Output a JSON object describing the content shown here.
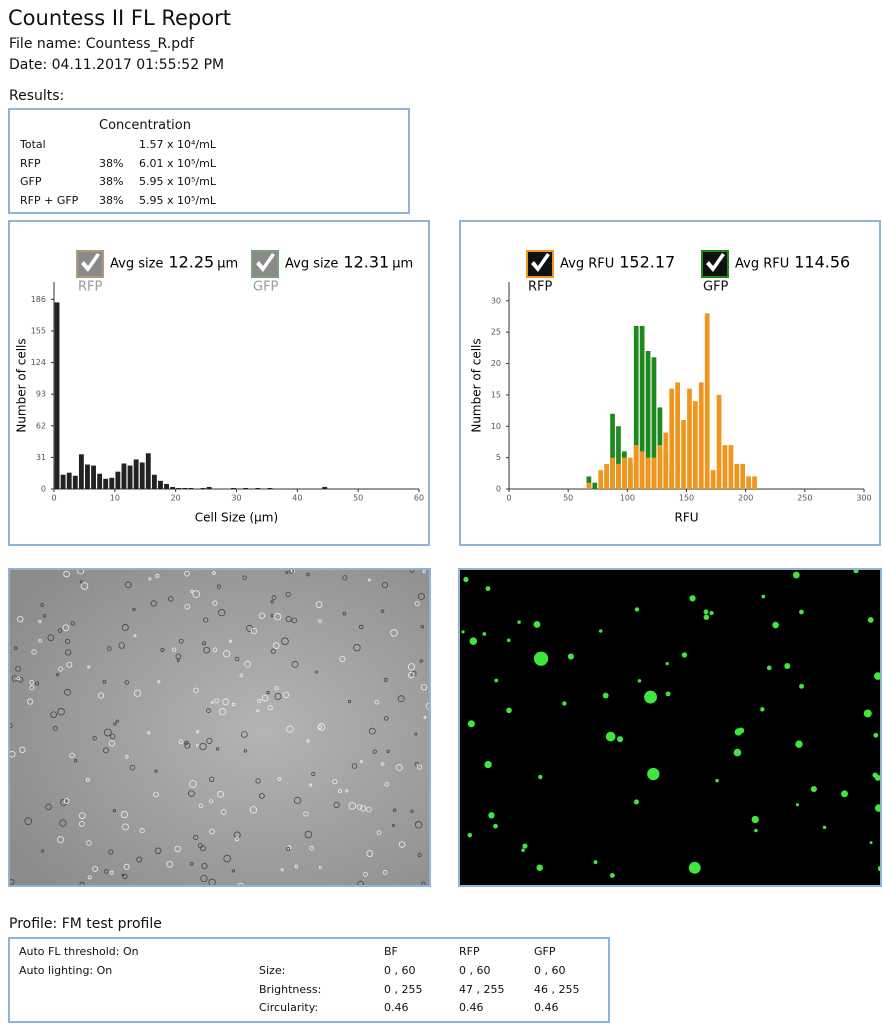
{
  "header": {
    "title": "Countess II FL Report",
    "file_name": "File name: Countess_R.pdf",
    "date": "Date: 04.11.2017 01:55:52 PM"
  },
  "results": {
    "label": "Results:",
    "column_header": "Concentration",
    "rows": [
      [
        "Total",
        "",
        "1.57 x 10⁴/mL"
      ],
      [
        "RFP",
        "38%",
        "6.01 x 10⁵/mL"
      ],
      [
        "GFP",
        "38%",
        "5.95 x 10⁵/mL"
      ],
      [
        "RFP + GFP",
        "38%",
        "5.95 x 10⁵/mL"
      ]
    ]
  },
  "chart_data": [
    {
      "type": "bar",
      "x_label": "Cell Size (µm)",
      "y_label": "Number of cells",
      "color": "#222222",
      "legend": [
        {
          "name": "RFP",
          "stat_label": "Avg size",
          "stat_value": 12.25,
          "stat_unit": "µm",
          "color": "#b0987a",
          "label_color": "#999999"
        },
        {
          "name": "GFP",
          "stat_label": "Avg size",
          "stat_value": 12.31,
          "stat_unit": "µm",
          "color": "#7ba07b",
          "label_color": "#999999"
        }
      ],
      "x": [
        0,
        1,
        2,
        3,
        4,
        5,
        6,
        7,
        8,
        9,
        10,
        11,
        12,
        13,
        14,
        15,
        16,
        17,
        18,
        19,
        20,
        21,
        22,
        24,
        25,
        29,
        31,
        33,
        35,
        44
      ],
      "values": [
        183,
        14,
        16,
        13,
        34,
        24,
        23,
        15,
        10,
        11,
        17,
        25,
        23,
        29,
        26,
        35,
        14,
        8,
        5,
        2,
        1,
        1,
        1,
        1,
        2,
        1,
        1,
        1,
        1,
        2
      ],
      "bar_width": 0.8,
      "xlim": [
        0,
        60
      ],
      "xticks": [
        0,
        10,
        20,
        30,
        40,
        50,
        60
      ],
      "ylim": [
        0,
        203
      ],
      "yticks": [
        0,
        31,
        62,
        93,
        124,
        155,
        186
      ]
    },
    {
      "type": "overlap-bar",
      "x_label": "RFU",
      "y_label": "Number of cells",
      "x": [
        65,
        70,
        75,
        80,
        85,
        90,
        95,
        100,
        105,
        110,
        115,
        120,
        125,
        130,
        135,
        140,
        145,
        150,
        155,
        160,
        165,
        170,
        175,
        180,
        185,
        190,
        195,
        200,
        205
      ],
      "bar_width": 4,
      "series": [
        {
          "name": "GFP",
          "color": "#1e8a1e",
          "stat_label": "Avg RFU",
          "stat_value": 114.56,
          "values": [
            2,
            1,
            0,
            3,
            12,
            10,
            6,
            4,
            26,
            26,
            22,
            21,
            13,
            6,
            3,
            0,
            0,
            0,
            0,
            0,
            0,
            0,
            0,
            0,
            0,
            0,
            0,
            0,
            0
          ]
        },
        {
          "name": "RFP",
          "color": "#f0961e",
          "stat_label": "Avg RFU",
          "stat_value": 152.17,
          "values": [
            1,
            0,
            3,
            4,
            5,
            4,
            5,
            5,
            7,
            6,
            5,
            5,
            7,
            9,
            16,
            17,
            11,
            16,
            14,
            17,
            28,
            3,
            15,
            7,
            7,
            4,
            4,
            2,
            2
          ]
        }
      ],
      "legend_order": [
        1,
        0
      ],
      "xlim": [
        0,
        300
      ],
      "xticks": [
        0,
        50,
        100,
        150,
        200,
        250,
        300
      ],
      "ylim": [
        0,
        33
      ],
      "yticks": [
        0,
        5,
        10,
        15,
        20,
        25,
        30
      ]
    }
  ],
  "profile": {
    "title": "Profile: FM test profile",
    "settings": [
      "Auto FL threshold: On",
      "Auto lighting: On"
    ],
    "columns": [
      "BF",
      "RFP",
      "GFP"
    ],
    "rows": [
      {
        "label": "Size:",
        "values": [
          "0 , 60",
          "0 , 60",
          "0 , 60"
        ]
      },
      {
        "label": "Brightness:",
        "values": [
          "0 , 255",
          "47 , 255",
          "46 , 255"
        ]
      },
      {
        "label": "Circularity:",
        "values": [
          0.46,
          0.46,
          0.46
        ]
      }
    ]
  }
}
